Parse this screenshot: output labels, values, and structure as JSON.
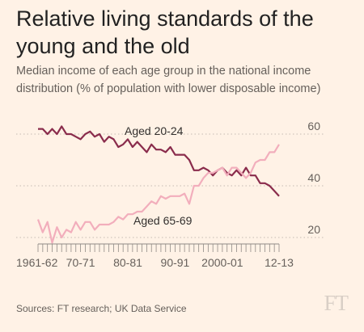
{
  "header": {
    "title": "Relative living standards of the young and the old",
    "subtitle": "Median income of each age group in the national income distribution (% of population with lower disposable income)"
  },
  "footer": {
    "source": "Sources: FT research; UK Data Service",
    "logo": "FT"
  },
  "colors": {
    "background": "#fff2e6",
    "young_series": "#8a2c4c",
    "old_series": "#f2aebc",
    "gridline": "#c4bbb3",
    "axis_text": "#66605b"
  },
  "chart_data": {
    "type": "line",
    "title": "Relative living standards of the young and the old",
    "subtitle": "Median income of each age group in the national income distribution (% of population with lower disposable income)",
    "x_tick_labels": [
      "1961-62",
      "70-71",
      "80-81",
      "90-91",
      "2000-01",
      "12-13"
    ],
    "x_tick_positions": [
      1961,
      1970,
      1980,
      1990,
      2000,
      2012
    ],
    "x_range": [
      1961,
      2012
    ],
    "y_ticks": [
      20,
      40,
      60
    ],
    "ylim": [
      15,
      65
    ],
    "gridlines": "horizontal dotted",
    "y_axis_side": "right",
    "series": [
      {
        "name": "Aged 20-24",
        "x": [
          1961,
          1962,
          1963,
          1964,
          1965,
          1966,
          1967,
          1968,
          1969,
          1970,
          1971,
          1972,
          1973,
          1974,
          1975,
          1976,
          1977,
          1978,
          1979,
          1980,
          1981,
          1982,
          1983,
          1984,
          1985,
          1986,
          1987,
          1988,
          1989,
          1990,
          1991,
          1992,
          1993,
          1994,
          1995,
          1996,
          1997,
          1998,
          1999,
          2000,
          2001,
          2002,
          2003,
          2004,
          2005,
          2006,
          2007,
          2008,
          2009,
          2010,
          2011,
          2012
        ],
        "y": [
          62,
          62,
          60,
          62,
          60,
          63,
          60,
          60,
          59,
          58,
          60,
          61,
          59,
          60,
          57,
          59,
          58,
          55,
          56,
          58,
          55,
          57,
          55,
          53,
          56,
          54,
          54,
          53,
          55,
          52,
          52,
          52,
          50,
          46,
          46,
          47,
          46,
          44,
          46,
          47,
          45,
          44,
          46,
          44,
          47,
          44,
          44,
          41,
          41,
          40,
          38,
          36
        ]
      },
      {
        "name": "Aged 65-69",
        "x": [
          1961,
          1962,
          1963,
          1964,
          1965,
          1966,
          1967,
          1968,
          1969,
          1970,
          1971,
          1972,
          1973,
          1974,
          1975,
          1976,
          1977,
          1978,
          1979,
          1980,
          1981,
          1982,
          1983,
          1984,
          1985,
          1986,
          1987,
          1988,
          1989,
          1990,
          1991,
          1992,
          1993,
          1994,
          1995,
          1996,
          1997,
          1998,
          1999,
          2000,
          2001,
          2002,
          2003,
          2004,
          2005,
          2006,
          2007,
          2008,
          2009,
          2010,
          2011,
          2012
        ],
        "y": [
          27,
          22,
          26,
          18,
          24,
          20,
          23,
          22,
          26,
          23,
          26,
          26,
          23,
          25,
          25,
          25,
          26,
          28,
          27,
          29,
          29,
          30,
          30,
          32,
          34,
          33,
          36,
          35,
          36,
          36,
          36,
          37,
          33,
          40,
          40,
          43,
          45,
          45,
          46,
          47,
          44,
          47,
          47,
          45,
          43,
          45,
          49,
          50,
          50,
          53,
          53,
          56
        ]
      }
    ],
    "annotations": [
      {
        "text": "Aged 20-24",
        "series": "Aged 20-24"
      },
      {
        "text": "Aged 65-69",
        "series": "Aged 65-69"
      }
    ]
  }
}
